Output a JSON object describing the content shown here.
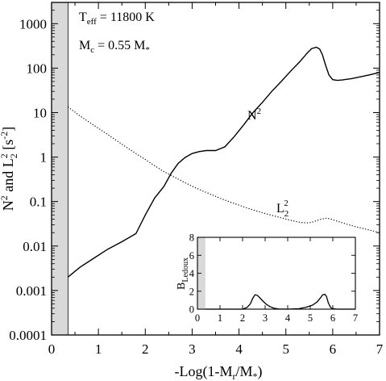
{
  "chart_data": [
    {
      "type": "line",
      "xlabel": "-Log(1-M_r/M_*)",
      "ylabel": "N^2 and L_2^2 [s^-2]",
      "xlim": [
        0,
        7
      ],
      "ylim": [
        0.0001,
        3000
      ],
      "yscale": "log",
      "x_ticks": [
        0,
        1,
        2,
        3,
        4,
        5,
        6,
        7
      ],
      "y_ticks": [
        {
          "value": 0.0001,
          "label": "0.0001"
        },
        {
          "value": 0.001,
          "label": "0.001"
        },
        {
          "value": 0.01,
          "label": "0.01"
        },
        {
          "value": 0.1,
          "label": "0.1"
        },
        {
          "value": 1,
          "label": "1"
        },
        {
          "value": 10,
          "label": "10"
        },
        {
          "value": 100,
          "label": "100"
        },
        {
          "value": 1000,
          "label": "1000"
        }
      ],
      "shaded_region": {
        "x": [
          0,
          0.35
        ],
        "color": "#d9d9d9"
      },
      "annotations": [
        {
          "id": "teff",
          "main": "T",
          "sub": "eff",
          "rest": " = 11800 K"
        },
        {
          "id": "mc",
          "main": "M",
          "sub": "c",
          "rest": " = 0.55 M",
          "sub2": "*"
        },
        {
          "id": "n2",
          "main": "N",
          "sup": "2"
        },
        {
          "id": "l22",
          "main": "L",
          "sub": "2",
          "sup": "2"
        }
      ],
      "series": [
        {
          "key": "N2",
          "style": "solid",
          "x": [
            0.35,
            0.6,
            0.9,
            1.2,
            1.5,
            1.8,
            2.0,
            2.2,
            2.4,
            2.55,
            2.7,
            2.85,
            3.0,
            3.15,
            3.3,
            3.5,
            3.7,
            3.9,
            4.1,
            4.3,
            4.5,
            4.7,
            4.9,
            5.1,
            5.3,
            5.45,
            5.55,
            5.65,
            5.72,
            5.78,
            5.85,
            5.92,
            6.0,
            6.1,
            6.2,
            6.4,
            6.6,
            6.8,
            7.0
          ],
          "y": [
            0.002,
            0.0033,
            0.0053,
            0.0085,
            0.0125,
            0.019,
            0.05,
            0.12,
            0.22,
            0.43,
            0.72,
            0.98,
            1.2,
            1.33,
            1.4,
            1.4,
            1.7,
            2.9,
            5.3,
            10,
            17,
            30,
            50,
            85,
            140,
            215,
            275,
            295,
            270,
            200,
            115,
            70,
            55,
            53,
            54,
            58,
            64,
            71,
            80
          ]
        },
        {
          "key": "L2_2",
          "style": "dotted",
          "x": [
            0.35,
            0.6,
            0.9,
            1.2,
            1.5,
            1.8,
            2.1,
            2.4,
            2.7,
            3.0,
            3.3,
            3.6,
            3.9,
            4.2,
            4.5,
            4.8,
            5.1,
            5.3,
            5.45,
            5.55,
            5.65,
            5.75,
            5.85,
            5.95,
            6.1,
            6.3,
            6.5,
            6.7,
            7.0
          ],
          "y": [
            13.5,
            8.5,
            5.2,
            3.2,
            1.95,
            1.2,
            0.75,
            0.47,
            0.32,
            0.22,
            0.16,
            0.118,
            0.09,
            0.07,
            0.056,
            0.046,
            0.038,
            0.034,
            0.033,
            0.034,
            0.037,
            0.04,
            0.042,
            0.041,
            0.036,
            0.031,
            0.027,
            0.024,
            0.02
          ]
        }
      ]
    },
    {
      "type": "line",
      "ylabel_main": "B",
      "ylabel_sub": "Ledoux",
      "xlim": [
        0,
        7
      ],
      "ylim": [
        0,
        8
      ],
      "x_ticks": [
        0,
        1,
        2,
        3,
        4,
        5,
        6,
        7
      ],
      "y_ticks": [
        0,
        2,
        4,
        6,
        8
      ],
      "shaded_region": {
        "x": [
          0,
          0.35
        ],
        "color": "#d9d9d9"
      },
      "series": [
        {
          "key": "B_Ledoux",
          "style": "solid",
          "x": [
            0.35,
            1.0,
            1.5,
            2.0,
            2.2,
            2.35,
            2.45,
            2.55,
            2.65,
            2.75,
            2.9,
            3.05,
            3.2,
            3.4,
            3.6,
            4.0,
            4.5,
            4.8,
            5.1,
            5.3,
            5.45,
            5.55,
            5.65,
            5.72,
            5.8,
            5.9,
            6.0,
            6.2,
            6.5,
            7.0
          ],
          "y": [
            0.0,
            0.0,
            0.0,
            0.0,
            0.2,
            0.6,
            1.2,
            1.6,
            1.55,
            1.3,
            0.9,
            0.55,
            0.3,
            0.1,
            0.02,
            0.0,
            0.05,
            0.2,
            0.45,
            0.8,
            1.25,
            1.6,
            1.65,
            1.4,
            0.7,
            0.2,
            0.05,
            0.0,
            0.0,
            0.0
          ]
        }
      ]
    }
  ]
}
